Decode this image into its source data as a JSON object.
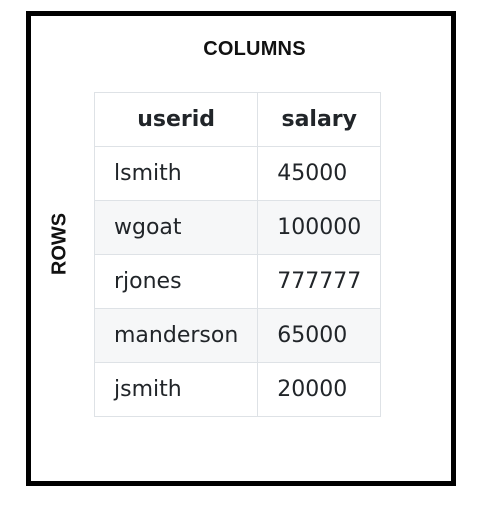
{
  "labels": {
    "columns": "COLUMNS",
    "rows": "ROWS"
  },
  "table": {
    "headers": [
      "userid",
      "salary"
    ],
    "rows": [
      [
        "lsmith",
        "45000"
      ],
      [
        "wgoat",
        "100000"
      ],
      [
        "rjones",
        "777777"
      ],
      [
        "manderson",
        "65000"
      ],
      [
        "jsmith",
        "20000"
      ]
    ]
  }
}
